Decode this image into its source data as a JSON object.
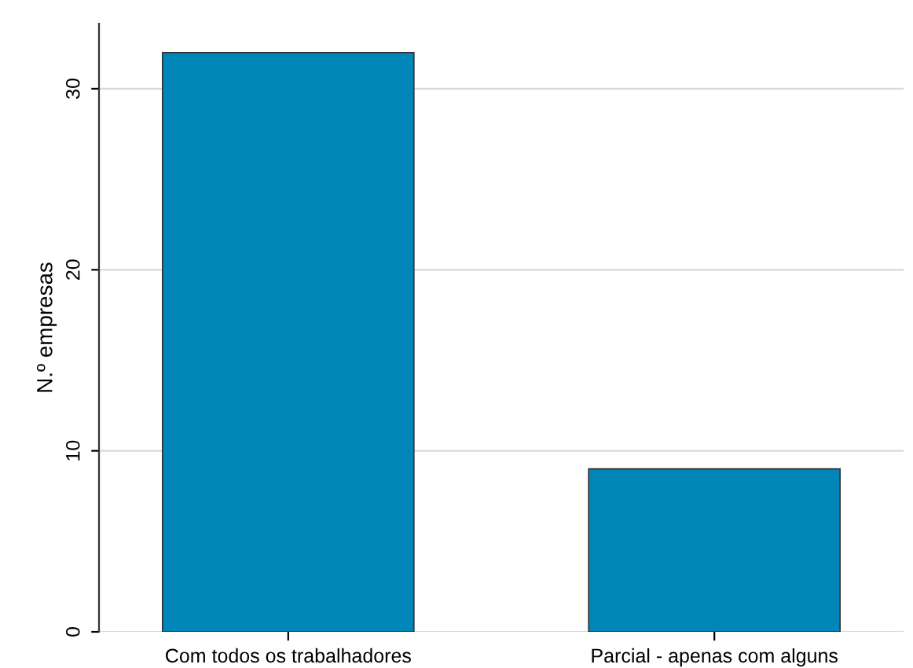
{
  "chart_data": {
    "type": "bar",
    "ylabel": "N.º empresas",
    "categories": [
      "Com todos os trabalhadores",
      "Parcial - apenas com alguns"
    ],
    "values": [
      32,
      9
    ],
    "color": "#0086b8",
    "ylim": [
      0,
      33.6
    ],
    "yticks": [
      0,
      10,
      20,
      30
    ],
    "grid": "y"
  }
}
